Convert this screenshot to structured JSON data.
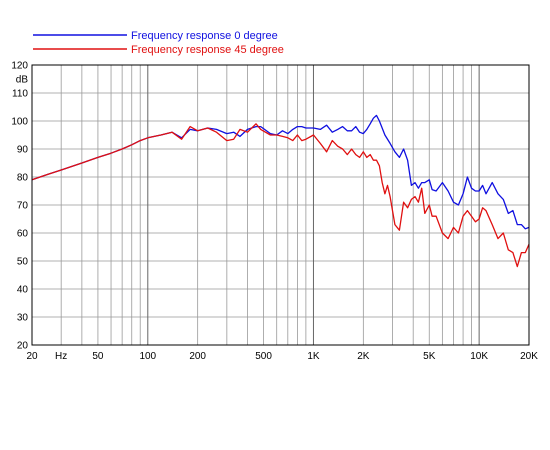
{
  "chart_data": {
    "type": "line",
    "title": "",
    "xlabel": "",
    "ylabel": "dB",
    "x_scale": "log",
    "xlim": [
      20,
      20000
    ],
    "ylim": [
      20,
      120
    ],
    "grid": true,
    "legend_position": "top-left",
    "y_ticks": [
      "20",
      "30",
      "40",
      "50",
      "60",
      "70",
      "80",
      "90",
      "100",
      "110",
      "120"
    ],
    "x_tick_labels": [
      {
        "x": 20,
        "label": "20"
      },
      {
        "x": 30,
        "label": "Hz"
      },
      {
        "x": 50,
        "label": "50"
      },
      {
        "x": 100,
        "label": "100"
      },
      {
        "x": 200,
        "label": "200"
      },
      {
        "x": 500,
        "label": "500"
      },
      {
        "x": 1000,
        "label": "1K"
      },
      {
        "x": 2000,
        "label": "2K"
      },
      {
        "x": 5000,
        "label": "5K"
      },
      {
        "x": 10000,
        "label": "10K"
      },
      {
        "x": 20000,
        "label": "20K"
      }
    ],
    "series": [
      {
        "name": "Frequency response 0 degree",
        "color": "#1010e0",
        "points": [
          [
            20,
            79
          ],
          [
            25,
            81
          ],
          [
            30,
            82.5
          ],
          [
            40,
            85
          ],
          [
            50,
            87
          ],
          [
            60,
            88.5
          ],
          [
            70,
            90
          ],
          [
            80,
            91.5
          ],
          [
            90,
            93
          ],
          [
            100,
            94
          ],
          [
            120,
            95
          ],
          [
            140,
            96
          ],
          [
            160,
            94
          ],
          [
            180,
            97
          ],
          [
            200,
            96.5
          ],
          [
            230,
            97.5
          ],
          [
            260,
            97
          ],
          [
            300,
            95.5
          ],
          [
            330,
            96
          ],
          [
            360,
            94.5
          ],
          [
            400,
            97
          ],
          [
            450,
            98
          ],
          [
            480,
            98
          ],
          [
            550,
            95.5
          ],
          [
            600,
            95
          ],
          [
            650,
            96.5
          ],
          [
            700,
            95.5
          ],
          [
            750,
            97
          ],
          [
            800,
            98
          ],
          [
            850,
            98
          ],
          [
            900,
            97.5
          ],
          [
            1000,
            97.5
          ],
          [
            1100,
            97
          ],
          [
            1200,
            98.5
          ],
          [
            1300,
            96
          ],
          [
            1400,
            97
          ],
          [
            1500,
            98
          ],
          [
            1600,
            96.5
          ],
          [
            1700,
            96.5
          ],
          [
            1800,
            98
          ],
          [
            1900,
            96
          ],
          [
            2000,
            95.5
          ],
          [
            2100,
            97
          ],
          [
            2200,
            99
          ],
          [
            2300,
            101
          ],
          [
            2400,
            102
          ],
          [
            2500,
            100
          ],
          [
            2700,
            95
          ],
          [
            2900,
            92
          ],
          [
            3100,
            89
          ],
          [
            3300,
            87
          ],
          [
            3500,
            90
          ],
          [
            3700,
            86
          ],
          [
            3900,
            77
          ],
          [
            4100,
            78
          ],
          [
            4300,
            76
          ],
          [
            4500,
            78
          ],
          [
            4700,
            78
          ],
          [
            5000,
            79
          ],
          [
            5200,
            75.5
          ],
          [
            5500,
            75
          ],
          [
            6000,
            78
          ],
          [
            6500,
            75
          ],
          [
            7000,
            71
          ],
          [
            7500,
            70
          ],
          [
            8000,
            74
          ],
          [
            8500,
            80
          ],
          [
            9000,
            76
          ],
          [
            9500,
            75
          ],
          [
            10000,
            75
          ],
          [
            10500,
            77
          ],
          [
            11000,
            74
          ],
          [
            12000,
            78
          ],
          [
            13000,
            74
          ],
          [
            14000,
            72
          ],
          [
            15000,
            67
          ],
          [
            16000,
            68
          ],
          [
            17000,
            63
          ],
          [
            18000,
            63
          ],
          [
            19000,
            61.5
          ],
          [
            20000,
            62
          ]
        ]
      },
      {
        "name": "Frequency response 45 degree",
        "color": "#e01010",
        "points": [
          [
            20,
            79
          ],
          [
            25,
            81
          ],
          [
            30,
            82.5
          ],
          [
            40,
            85
          ],
          [
            50,
            87
          ],
          [
            60,
            88.5
          ],
          [
            70,
            90
          ],
          [
            80,
            91.5
          ],
          [
            90,
            93
          ],
          [
            100,
            94
          ],
          [
            120,
            95
          ],
          [
            140,
            96
          ],
          [
            160,
            93.5
          ],
          [
            180,
            98
          ],
          [
            200,
            96.5
          ],
          [
            230,
            97.5
          ],
          [
            260,
            96
          ],
          [
            300,
            93
          ],
          [
            330,
            93.5
          ],
          [
            360,
            97
          ],
          [
            400,
            96
          ],
          [
            450,
            99
          ],
          [
            480,
            97
          ],
          [
            550,
            95
          ],
          [
            600,
            95
          ],
          [
            650,
            94.5
          ],
          [
            700,
            94
          ],
          [
            750,
            93
          ],
          [
            800,
            95
          ],
          [
            850,
            93
          ],
          [
            900,
            93.5
          ],
          [
            1000,
            95
          ],
          [
            1100,
            92
          ],
          [
            1200,
            89
          ],
          [
            1300,
            93
          ],
          [
            1400,
            91
          ],
          [
            1500,
            90
          ],
          [
            1600,
            88
          ],
          [
            1700,
            90
          ],
          [
            1800,
            88
          ],
          [
            1900,
            87
          ],
          [
            2000,
            89
          ],
          [
            2100,
            87
          ],
          [
            2200,
            88
          ],
          [
            2300,
            86
          ],
          [
            2400,
            86
          ],
          [
            2500,
            84
          ],
          [
            2600,
            78
          ],
          [
            2700,
            74
          ],
          [
            2800,
            77
          ],
          [
            2900,
            73
          ],
          [
            3100,
            63
          ],
          [
            3300,
            61
          ],
          [
            3500,
            71
          ],
          [
            3700,
            69
          ],
          [
            3900,
            72
          ],
          [
            4100,
            73
          ],
          [
            4300,
            71
          ],
          [
            4500,
            76
          ],
          [
            4700,
            67
          ],
          [
            5000,
            70
          ],
          [
            5200,
            66
          ],
          [
            5500,
            66
          ],
          [
            6000,
            60
          ],
          [
            6500,
            58
          ],
          [
            7000,
            62
          ],
          [
            7500,
            60
          ],
          [
            8000,
            66
          ],
          [
            8500,
            68
          ],
          [
            9000,
            66
          ],
          [
            9500,
            64
          ],
          [
            10000,
            65
          ],
          [
            10500,
            69
          ],
          [
            11000,
            68
          ],
          [
            12000,
            63
          ],
          [
            13000,
            58
          ],
          [
            14000,
            60
          ],
          [
            15000,
            54
          ],
          [
            16000,
            53
          ],
          [
            17000,
            48
          ],
          [
            18000,
            53
          ],
          [
            19000,
            53
          ],
          [
            20000,
            56
          ]
        ]
      }
    ]
  }
}
